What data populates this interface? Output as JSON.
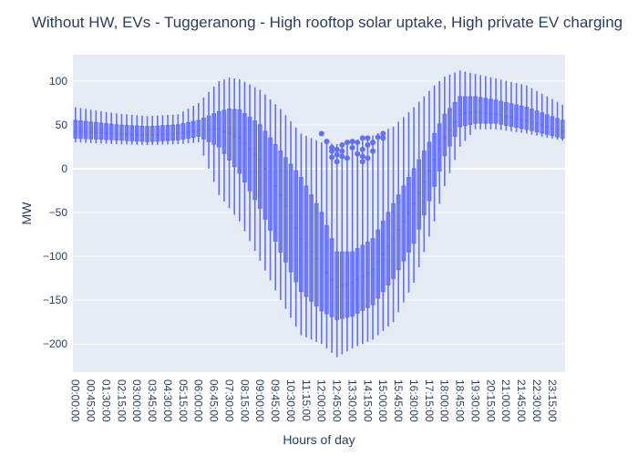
{
  "chart_data": {
    "type": "box",
    "title": "Without HW, EVs - Tuggeranong - High rooftop solar uptake, High private EV charging",
    "xlabel": "Hours of day",
    "ylabel": "MW",
    "ylim": [
      -232,
      130
    ],
    "y_ticks": [
      100,
      50,
      0,
      -50,
      -100,
      -150,
      -200
    ],
    "y_tick_labels": [
      "100",
      "50",
      "0",
      "−50",
      "−100",
      "−150",
      "−200"
    ],
    "x_tick_labels": [
      "00:00:00",
      "00:45:00",
      "01:30:00",
      "02:15:00",
      "03:00:00",
      "03:45:00",
      "04:30:00",
      "05:15:00",
      "06:00:00",
      "06:45:00",
      "07:30:00",
      "08:15:00",
      "09:00:00",
      "09:45:00",
      "10:30:00",
      "11:15:00",
      "12:00:00",
      "12:45:00",
      "13:30:00",
      "14:15:00",
      "15:00:00",
      "15:45:00",
      "16:30:00",
      "17:15:00",
      "18:00:00",
      "18:45:00",
      "19:30:00",
      "20:15:00",
      "21:00:00",
      "21:45:00",
      "22:30:00",
      "23:15:00"
    ],
    "x_tick_every": 3,
    "interval_minutes": 15,
    "box_color": "#636efa",
    "plot_bg": "#e5ecf6",
    "grid": true,
    "legend": "none",
    "keyframes": [
      [
        0.0,
        70,
        55,
        42,
        35,
        30
      ],
      [
        2.0,
        63,
        50,
        40,
        33,
        28
      ],
      [
        3.5,
        60,
        48,
        38,
        31,
        27
      ],
      [
        5.0,
        62,
        50,
        40,
        33,
        28
      ],
      [
        6.0,
        75,
        55,
        44,
        37,
        30
      ],
      [
        7.0,
        100,
        65,
        45,
        25,
        -30
      ],
      [
        7.5,
        104,
        68,
        40,
        10,
        -45
      ],
      [
        8.0,
        102,
        67,
        35,
        -5,
        -60
      ],
      [
        9.0,
        90,
        50,
        10,
        -45,
        -105
      ],
      [
        10.0,
        68,
        20,
        -30,
        -95,
        -150
      ],
      [
        11.0,
        40,
        -10,
        -80,
        -140,
        -190
      ],
      [
        12.0,
        30,
        -50,
        -110,
        -162,
        -200
      ],
      [
        12.75,
        28,
        -95,
        -135,
        -172,
        -215
      ],
      [
        13.5,
        30,
        -95,
        -130,
        -168,
        -205
      ],
      [
        14.5,
        38,
        -80,
        -115,
        -155,
        -195
      ],
      [
        15.5,
        48,
        -40,
        -80,
        -125,
        -175
      ],
      [
        16.5,
        70,
        0,
        -40,
        -85,
        -130
      ],
      [
        17.5,
        95,
        40,
        10,
        -20,
        -60
      ],
      [
        18.0,
        105,
        62,
        35,
        15,
        -20
      ],
      [
        18.75,
        112,
        82,
        62,
        48,
        25
      ],
      [
        19.5,
        108,
        82,
        65,
        52,
        45
      ],
      [
        20.5,
        103,
        78,
        62,
        52,
        45
      ],
      [
        22.0,
        95,
        70,
        55,
        45,
        40
      ],
      [
        23.75,
        73,
        55,
        43,
        35,
        32
      ]
    ],
    "outliers": [
      [
        12.0,
        40
      ],
      [
        12.25,
        31
      ],
      [
        12.5,
        24
      ],
      [
        12.5,
        13
      ],
      [
        12.5,
        20
      ],
      [
        12.75,
        22
      ],
      [
        12.75,
        8
      ],
      [
        12.75,
        16
      ],
      [
        13.0,
        27
      ],
      [
        13.0,
        14
      ],
      [
        13.0,
        20
      ],
      [
        13.25,
        30
      ],
      [
        13.25,
        12
      ],
      [
        13.5,
        24
      ],
      [
        13.5,
        31
      ],
      [
        13.75,
        30
      ],
      [
        13.75,
        17
      ],
      [
        14.0,
        35
      ],
      [
        14.0,
        22
      ],
      [
        14.0,
        8
      ],
      [
        14.0,
        14
      ],
      [
        14.25,
        35
      ],
      [
        14.25,
        12
      ],
      [
        14.25,
        27
      ],
      [
        14.5,
        30
      ],
      [
        14.5,
        20
      ],
      [
        14.75,
        36
      ],
      [
        15.0,
        40
      ],
      [
        15.0,
        35
      ]
    ]
  }
}
